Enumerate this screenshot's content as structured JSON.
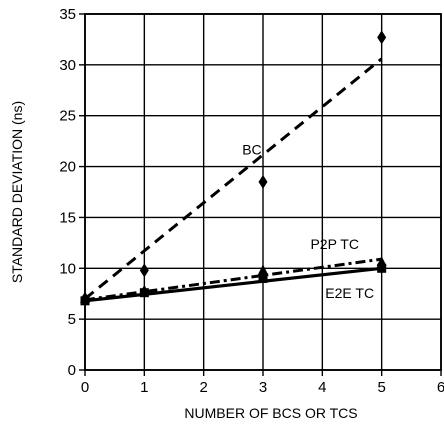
{
  "chart_data": {
    "type": "scatter",
    "xlabel": "NUMBER OF BCS OR TCS",
    "ylabel": "STANDARD DEVIATION (ns)",
    "xlim": [
      0,
      6
    ],
    "ylim": [
      0,
      35
    ],
    "xticks": [
      0,
      1,
      2,
      3,
      4,
      5,
      6
    ],
    "yticks": [
      0,
      5,
      10,
      15,
      20,
      25,
      30,
      35
    ],
    "grid": true,
    "series": [
      {
        "name": "BC",
        "marker": "diamond",
        "points": [
          {
            "x": 0,
            "y": 7.0
          },
          {
            "x": 1,
            "y": 9.8
          },
          {
            "x": 3,
            "y": 18.5
          },
          {
            "x": 5,
            "y": 32.7
          }
        ],
        "fit": {
          "style": "dashed",
          "from": {
            "x": 0,
            "y": 7.0
          },
          "to": {
            "x": 5,
            "y": 30.6
          }
        }
      },
      {
        "name": "P2P TC",
        "marker": "triangle",
        "points": [
          {
            "x": 0,
            "y": 7.0
          },
          {
            "x": 1,
            "y": 7.8
          },
          {
            "x": 3,
            "y": 9.8
          },
          {
            "x": 5,
            "y": 10.6
          }
        ],
        "fit": {
          "style": "dash-dot",
          "from": {
            "x": 0,
            "y": 6.9
          },
          "to": {
            "x": 5,
            "y": 10.9
          }
        }
      },
      {
        "name": "E2E TC",
        "marker": "square",
        "points": [
          {
            "x": 0,
            "y": 6.8
          },
          {
            "x": 1,
            "y": 7.6
          },
          {
            "x": 3,
            "y": 9.0
          },
          {
            "x": 5,
            "y": 10.0
          }
        ],
        "fit": {
          "style": "solid",
          "from": {
            "x": 0,
            "y": 6.8
          },
          "to": {
            "x": 5,
            "y": 10.0
          }
        }
      }
    ],
    "annotations": [
      {
        "text": "BC",
        "x": 2.65,
        "y": 21.2
      },
      {
        "text": "P2P TC",
        "x": 3.8,
        "y": 11.9
      },
      {
        "text": "E2E TC",
        "x": 4.05,
        "y": 7.1
      }
    ],
    "colors": {
      "line": "#000000",
      "grid": "#000000",
      "background": "#ffffff"
    }
  }
}
